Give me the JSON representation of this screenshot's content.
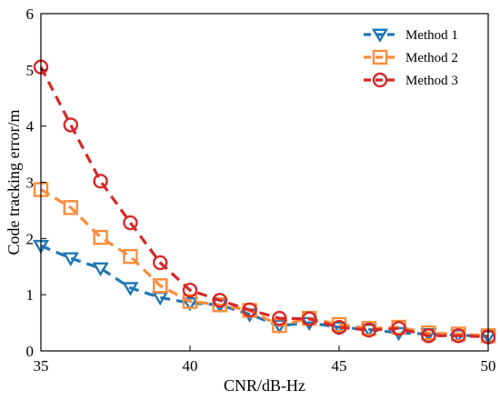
{
  "chart_data": {
    "type": "line",
    "title": "",
    "xlabel": "CNR/dB-Hz",
    "ylabel": "Code tracking error/m",
    "xlim": [
      35,
      50
    ],
    "ylim": [
      0,
      6
    ],
    "xticks": [
      35,
      40,
      45,
      50
    ],
    "yticks": [
      0,
      1,
      2,
      3,
      4,
      5,
      6
    ],
    "x": [
      35,
      36,
      37,
      38,
      39,
      40,
      41,
      42,
      43,
      44,
      45,
      46,
      47,
      48,
      49,
      50
    ],
    "series": [
      {
        "name": "Method 1",
        "color": "#1f77b4",
        "marker": "triangle-down",
        "values": [
          1.87,
          1.65,
          1.47,
          1.12,
          0.95,
          0.85,
          0.82,
          0.65,
          0.45,
          0.5,
          0.42,
          0.38,
          0.32,
          0.3,
          0.28,
          0.26
        ]
      },
      {
        "name": "Method 2",
        "color": "#ff8c3a",
        "marker": "square",
        "values": [
          2.87,
          2.55,
          2.02,
          1.68,
          1.16,
          0.88,
          0.82,
          0.72,
          0.45,
          0.58,
          0.47,
          0.4,
          0.42,
          0.32,
          0.3,
          0.27
        ]
      },
      {
        "name": "Method 3",
        "color": "#d62728",
        "marker": "circle",
        "values": [
          5.05,
          4.02,
          3.02,
          2.28,
          1.57,
          1.08,
          0.9,
          0.73,
          0.58,
          0.57,
          0.42,
          0.37,
          0.4,
          0.27,
          0.27,
          0.25
        ]
      }
    ],
    "grid": false,
    "legend_position": "top-right"
  }
}
